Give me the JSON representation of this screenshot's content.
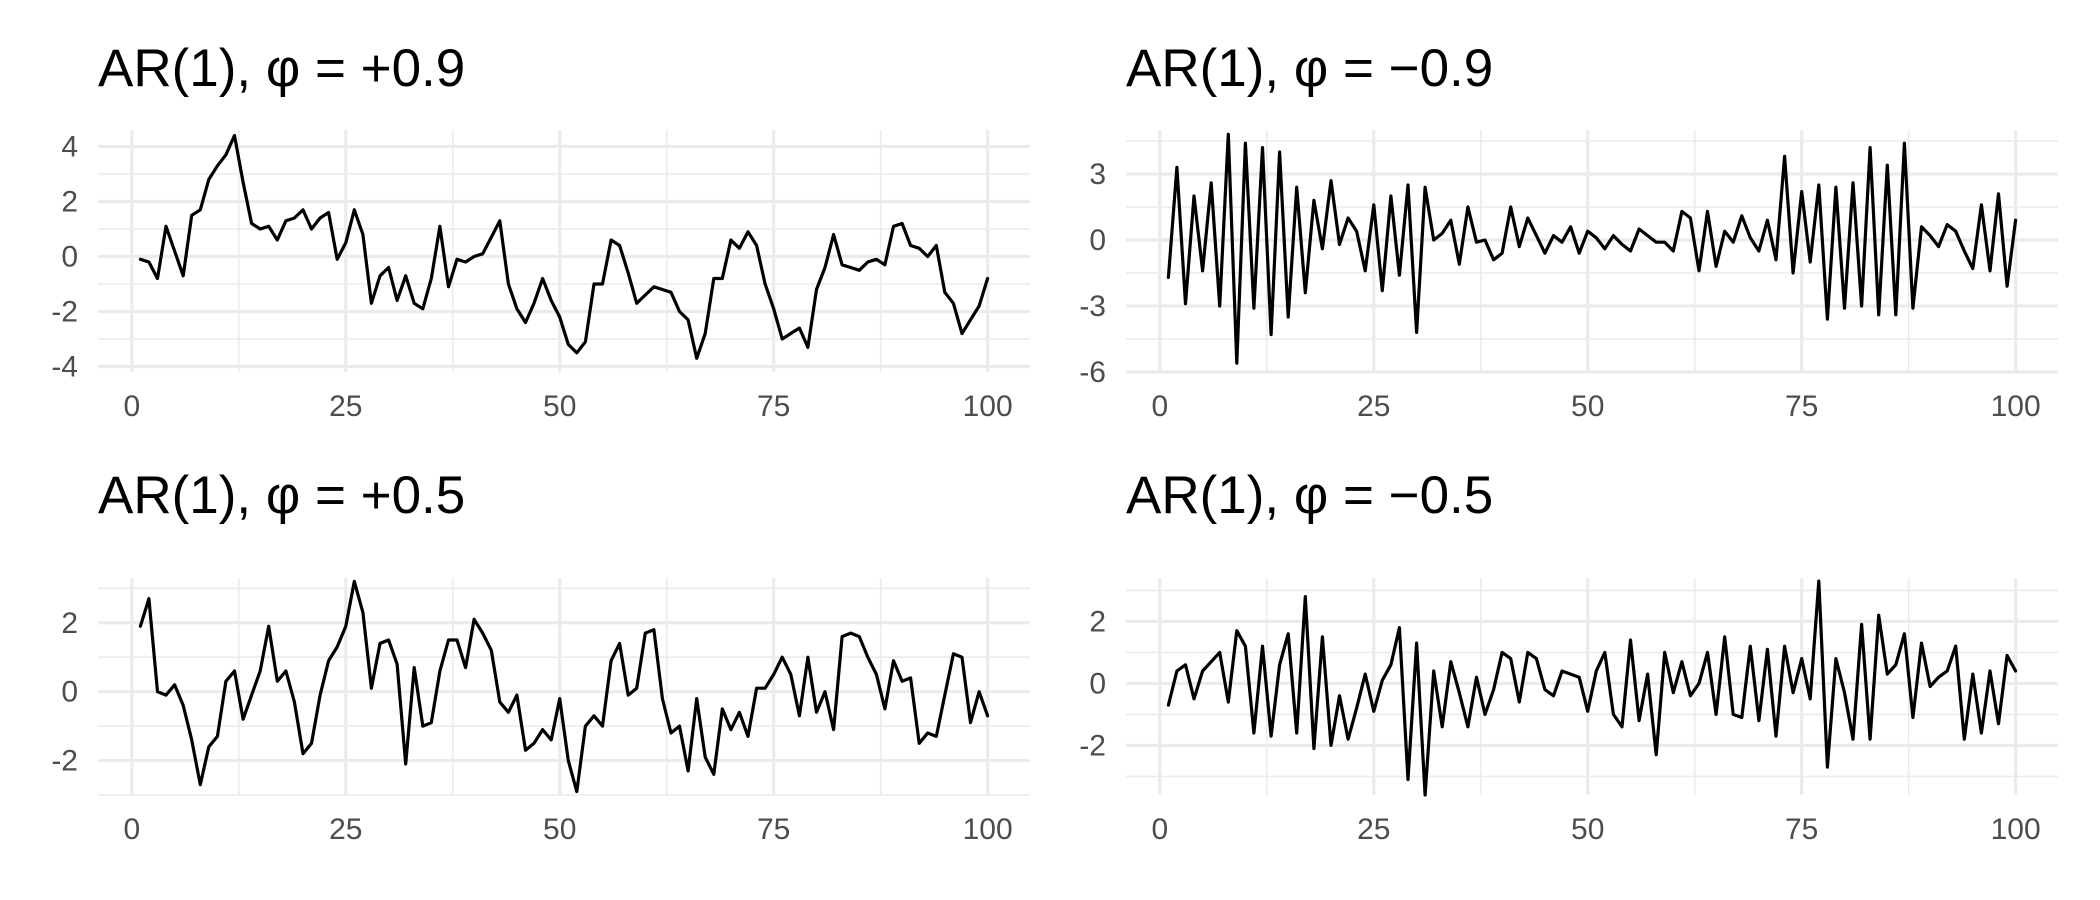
{
  "chart_data": [
    {
      "type": "line",
      "title": "AR(1), φ = +0.9",
      "xlim": [
        1,
        100
      ],
      "ylim": [
        -4.2,
        4.6
      ],
      "x_ticks": [
        0,
        25,
        50,
        75,
        100
      ],
      "x_tick_labels": [
        "0",
        "25",
        "50",
        "75",
        "100"
      ],
      "y_ticks": [
        -4,
        -2,
        0,
        2,
        4
      ],
      "y_tick_labels": [
        "-4",
        "-2",
        "0",
        "2",
        "4"
      ],
      "grid": true,
      "series": [
        {
          "color": "#000000",
          "x_start": 1,
          "values": [
            -0.1,
            -0.2,
            -0.8,
            1.1,
            0.2,
            -0.7,
            1.5,
            1.7,
            2.8,
            3.3,
            3.7,
            4.4,
            2.7,
            1.2,
            1.0,
            1.1,
            0.6,
            1.3,
            1.4,
            1.7,
            1.0,
            1.4,
            1.6,
            -0.1,
            0.5,
            1.7,
            0.8,
            -1.7,
            -0.7,
            -0.4,
            -1.6,
            -0.7,
            -1.7,
            -1.9,
            -0.8,
            1.1,
            -1.1,
            -0.1,
            -0.2,
            0.0,
            0.1,
            0.7,
            1.3,
            -1.0,
            -1.9,
            -2.4,
            -1.7,
            -0.8,
            -1.6,
            -2.2,
            -3.2,
            -3.5,
            -3.1,
            -1.0,
            -1.0,
            0.6,
            0.4,
            -0.6,
            -1.7,
            -1.4,
            -1.1,
            -1.2,
            -1.3,
            -2.0,
            -2.3,
            -3.7,
            -2.8,
            -0.8,
            -0.8,
            0.6,
            0.3,
            0.9,
            0.4,
            -1.0,
            -1.9,
            -3.0,
            -2.8,
            -2.6,
            -3.3,
            -1.2,
            -0.4,
            0.8,
            -0.3,
            -0.4,
            -0.5,
            -0.2,
            -0.1,
            -0.3,
            1.1,
            1.2,
            0.4,
            0.3,
            0.0,
            0.4,
            -1.3,
            -1.7,
            -2.8,
            -2.3,
            -1.8,
            -0.8
          ]
        }
      ]
    },
    {
      "type": "line",
      "title": "AR(1), φ = −0.9",
      "xlim": [
        1,
        100
      ],
      "ylim": [
        -6.0,
        5.0
      ],
      "x_ticks": [
        0,
        25,
        50,
        75,
        100
      ],
      "x_tick_labels": [
        "0",
        "25",
        "50",
        "75",
        "100"
      ],
      "y_ticks": [
        -6,
        -3,
        0,
        3
      ],
      "y_tick_labels": [
        "-6",
        "-3",
        "0",
        "3"
      ],
      "grid": true,
      "series": [
        {
          "color": "#000000",
          "x_start": 1,
          "values": [
            -1.7,
            3.3,
            -2.9,
            2.0,
            -1.4,
            2.6,
            -3.0,
            4.8,
            -5.6,
            4.4,
            -3.1,
            4.2,
            -4.3,
            4.0,
            -3.5,
            2.4,
            -2.4,
            1.8,
            -0.4,
            2.7,
            -0.2,
            1.0,
            0.4,
            -1.4,
            1.6,
            -2.3,
            2.0,
            -1.6,
            2.5,
            -4.2,
            2.4,
            0.0,
            0.3,
            0.9,
            -1.1,
            1.5,
            -0.1,
            0.0,
            -0.9,
            -0.6,
            1.5,
            -0.3,
            1.0,
            0.2,
            -0.6,
            0.2,
            -0.1,
            0.6,
            -0.6,
            0.4,
            0.1,
            -0.4,
            0.2,
            -0.2,
            -0.5,
            0.5,
            0.2,
            -0.1,
            -0.1,
            -0.5,
            1.3,
            1.0,
            -1.4,
            1.3,
            -1.2,
            0.4,
            -0.1,
            1.1,
            0.1,
            -0.5,
            0.9,
            -0.9,
            3.8,
            -1.5,
            2.2,
            -1.0,
            2.5,
            -3.6,
            2.4,
            -3.1,
            2.6,
            -3.0,
            4.2,
            -3.4,
            3.4,
            -3.4,
            4.4,
            -3.1,
            0.6,
            0.2,
            -0.3,
            0.7,
            0.4,
            -0.5,
            -1.3,
            1.6,
            -1.4,
            2.1,
            -2.1,
            0.9
          ]
        }
      ]
    },
    {
      "type": "line",
      "title": "AR(1), φ = +0.5",
      "xlim": [
        1,
        100
      ],
      "ylim": [
        -3.0,
        3.3
      ],
      "x_ticks": [
        0,
        25,
        50,
        75,
        100
      ],
      "x_tick_labels": [
        "0",
        "25",
        "50",
        "75",
        "100"
      ],
      "y_ticks": [
        -2,
        0,
        2
      ],
      "y_tick_labels": [
        "-2",
        "0",
        "2"
      ],
      "grid": true,
      "series": [
        {
          "color": "#000000",
          "x_start": 1,
          "values": [
            1.9,
            2.7,
            0.0,
            -0.1,
            0.2,
            -0.4,
            -1.4,
            -2.7,
            -1.6,
            -1.3,
            0.3,
            0.6,
            -0.8,
            -0.1,
            0.6,
            1.9,
            0.3,
            0.6,
            -0.3,
            -1.8,
            -1.5,
            -0.1,
            0.9,
            1.3,
            1.9,
            3.2,
            2.3,
            0.1,
            1.4,
            1.5,
            0.8,
            -2.1,
            0.7,
            -1.0,
            -0.9,
            0.6,
            1.5,
            1.5,
            0.7,
            2.1,
            1.7,
            1.2,
            -0.3,
            -0.6,
            -0.1,
            -1.7,
            -1.5,
            -1.1,
            -1.4,
            -0.2,
            -2.0,
            -2.9,
            -1.0,
            -0.7,
            -1.0,
            0.9,
            1.4,
            -0.1,
            0.1,
            1.7,
            1.8,
            -0.2,
            -1.2,
            -1.0,
            -2.3,
            -0.2,
            -1.9,
            -2.4,
            -0.5,
            -1.1,
            -0.6,
            -1.3,
            0.1,
            0.1,
            0.5,
            1.0,
            0.5,
            -0.7,
            1.0,
            -0.6,
            0.0,
            -1.1,
            1.6,
            1.7,
            1.6,
            1.0,
            0.5,
            -0.5,
            0.9,
            0.3,
            0.4,
            -1.5,
            -1.2,
            -1.3,
            -0.1,
            1.1,
            1.0,
            -0.9,
            0.0,
            -0.7
          ]
        }
      ]
    },
    {
      "type": "line",
      "title": "AR(1), φ = −0.5",
      "xlim": [
        1,
        100
      ],
      "ylim": [
        -3.6,
        3.4
      ],
      "x_ticks": [
        0,
        25,
        50,
        75,
        100
      ],
      "x_tick_labels": [
        "0",
        "25",
        "50",
        "75",
        "100"
      ],
      "y_ticks": [
        -2,
        0,
        2
      ],
      "y_tick_labels": [
        "-2",
        "0",
        "2"
      ],
      "grid": true,
      "series": [
        {
          "color": "#000000",
          "x_start": 1,
          "values": [
            -0.7,
            0.4,
            0.6,
            -0.5,
            0.4,
            0.7,
            1.0,
            -0.6,
            1.7,
            1.2,
            -1.6,
            1.2,
            -1.7,
            0.6,
            1.6,
            -1.6,
            2.8,
            -2.1,
            1.5,
            -2.0,
            -0.4,
            -1.8,
            -0.8,
            0.3,
            -0.9,
            0.1,
            0.6,
            1.8,
            -3.1,
            1.3,
            -3.6,
            0.4,
            -1.4,
            0.7,
            -0.3,
            -1.4,
            0.2,
            -1.0,
            -0.2,
            1.0,
            0.8,
            -0.6,
            1.0,
            0.8,
            -0.2,
            -0.4,
            0.4,
            0.3,
            0.2,
            -0.9,
            0.4,
            1.0,
            -1.0,
            -1.4,
            1.4,
            -1.2,
            0.3,
            -2.3,
            1.0,
            -0.3,
            0.7,
            -0.4,
            0.0,
            1.0,
            -1.0,
            1.5,
            -1.0,
            -1.1,
            1.2,
            -1.2,
            1.1,
            -1.7,
            1.2,
            -0.3,
            0.8,
            -0.5,
            3.3,
            -2.7,
            0.8,
            -0.3,
            -1.8,
            1.9,
            -1.8,
            2.2,
            0.3,
            0.6,
            1.6,
            -1.1,
            1.3,
            -0.1,
            0.2,
            0.4,
            1.2,
            -1.8,
            0.3,
            -1.6,
            0.4,
            -1.3,
            0.9,
            0.4
          ]
        }
      ]
    }
  ]
}
